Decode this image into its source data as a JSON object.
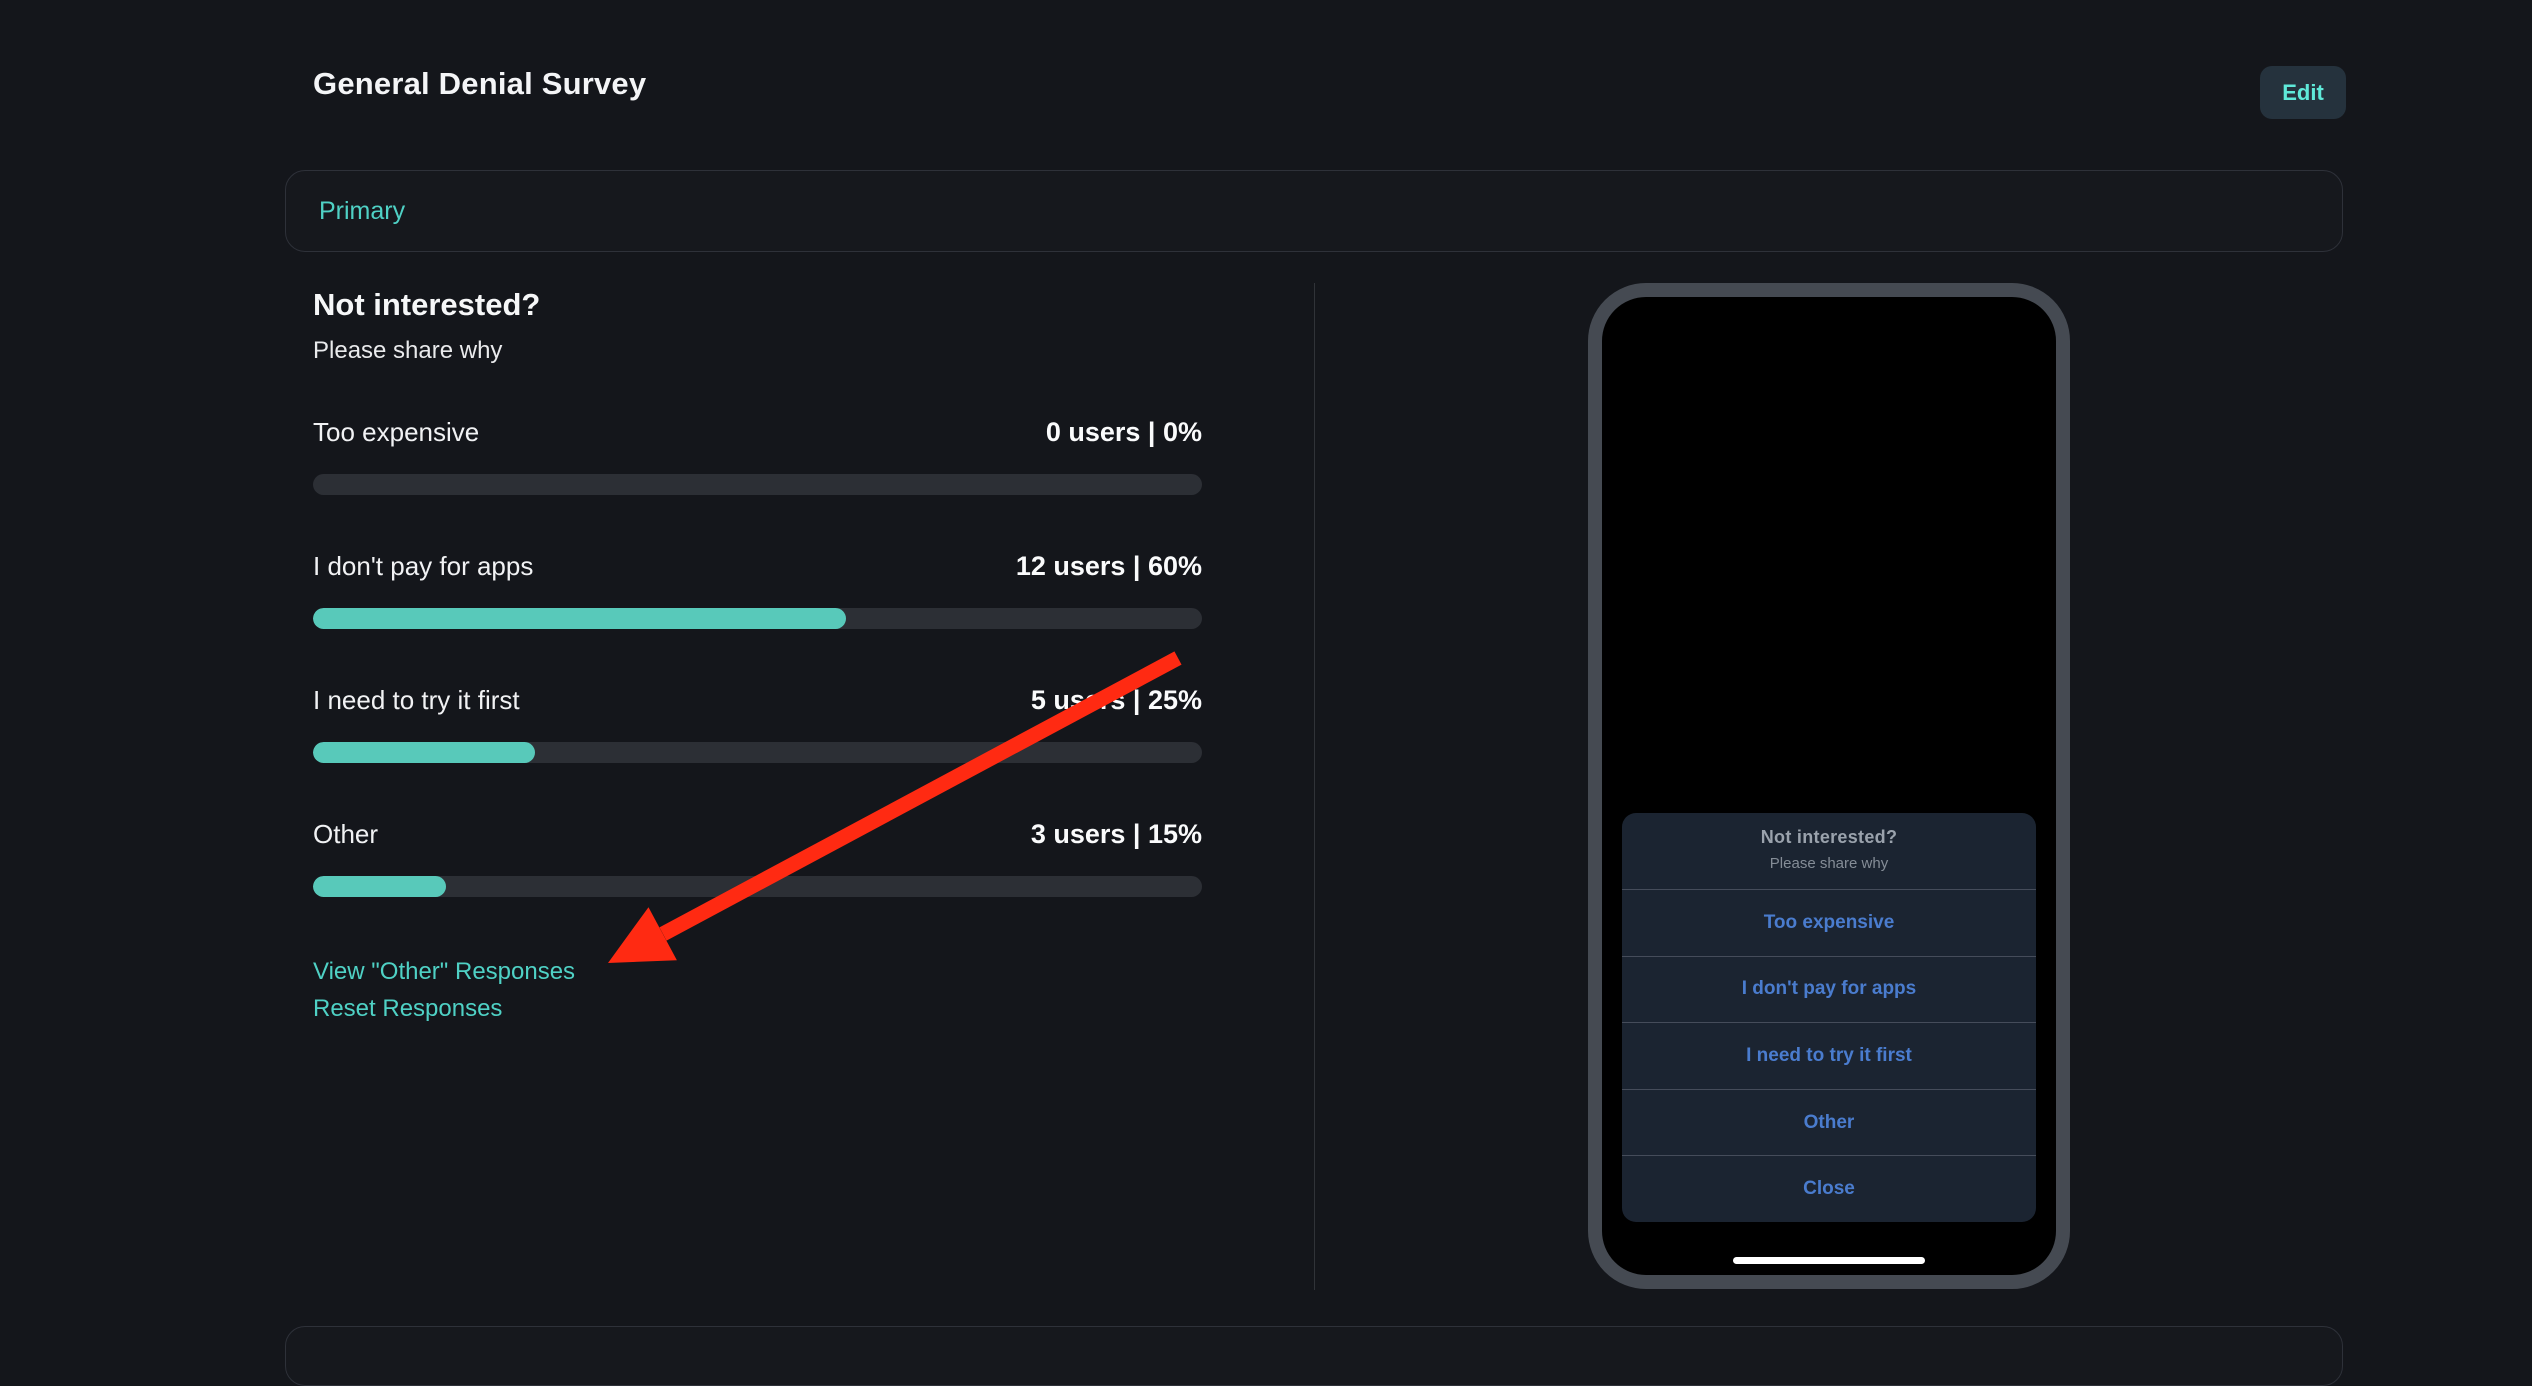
{
  "page": {
    "title": "General Denial Survey",
    "edit_label": "Edit",
    "section_label": "Primary"
  },
  "survey": {
    "question": "Not interested?",
    "subtitle": "Please share why",
    "options": [
      {
        "label": "Too expensive",
        "users": 0,
        "percent": 0,
        "stat": "0 users | 0%"
      },
      {
        "label": "I don't pay for apps",
        "users": 12,
        "percent": 60,
        "stat": "12 users | 60%"
      },
      {
        "label": "I need to try it first",
        "users": 5,
        "percent": 25,
        "stat": "5 users | 25%"
      },
      {
        "label": "Other",
        "users": 3,
        "percent": 15,
        "stat": "3 users | 15%"
      }
    ],
    "links": {
      "view_other": "View \"Other\" Responses",
      "reset": "Reset Responses"
    }
  },
  "phone_preview": {
    "sheet": {
      "title": "Not interested?",
      "subtitle": "Please share why",
      "options": [
        {
          "label": "Too expensive"
        },
        {
          "label": "I don't pay for apps"
        },
        {
          "label": "I need to try it first"
        },
        {
          "label": "Other"
        }
      ],
      "close_label": "Close"
    }
  },
  "colors": {
    "background": "#14161b",
    "accent_teal": "#4fd1c5",
    "bar_fill": "#58c9ba",
    "bar_track": "#2c2f35",
    "edit_button_bg": "#25323d",
    "edit_button_text": "#5fe9d9",
    "phone_frame": "#454a52",
    "sheet_bg": "#1b2431",
    "sheet_option_blue": "#4a7cce",
    "annotation_arrow": "#ff2a12"
  }
}
